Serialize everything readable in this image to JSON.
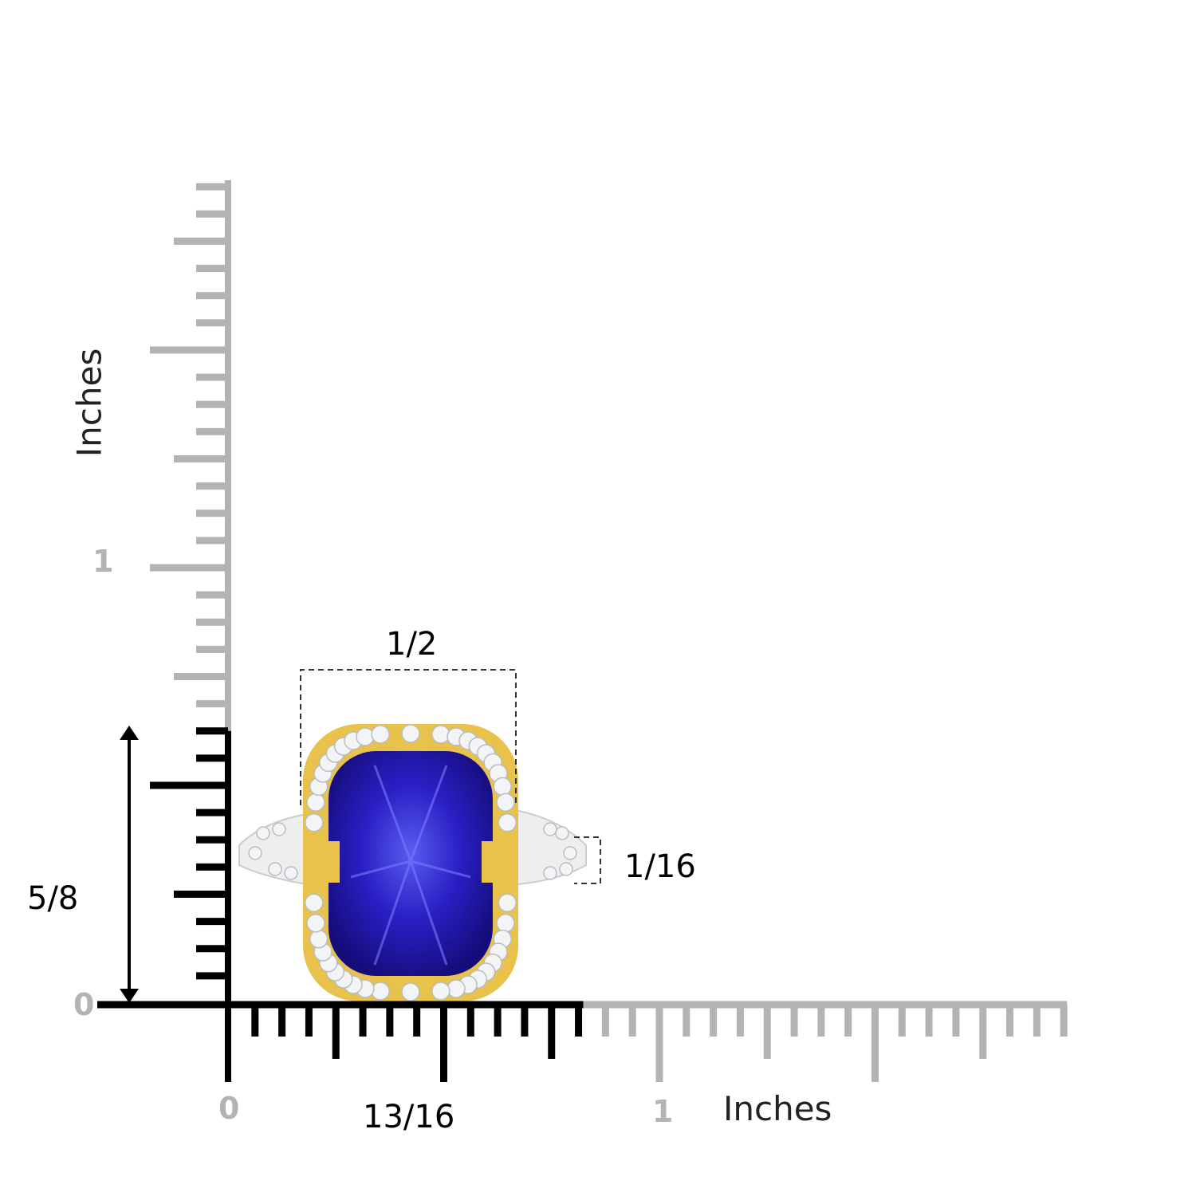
{
  "rulers": {
    "unit_label_vertical": "Inches",
    "unit_label_horizontal": "Inches",
    "vertical_ticks_labels": {
      "zero": "0",
      "one": "1"
    },
    "horizontal_ticks_labels": {
      "zero": "0",
      "one": "1"
    },
    "vertical_length_in": 2,
    "horizontal_length_in": 2,
    "active_color": "#000000",
    "inactive_color": "#b3b3b3"
  },
  "measurements": {
    "ring_height": {
      "label": "5/8",
      "value_in": 0.625
    },
    "ring_width": {
      "label": "13/16",
      "value_in": 0.8125
    },
    "top_width": {
      "label": "1/2",
      "value_in": 0.5
    },
    "band_width": {
      "label": "1/16",
      "value_in": 0.0625
    }
  },
  "product": {
    "gem_color": "#2a1fc4",
    "halo_metal_color": "#e8c24a",
    "band_metal_color": "#e6e6e6"
  }
}
